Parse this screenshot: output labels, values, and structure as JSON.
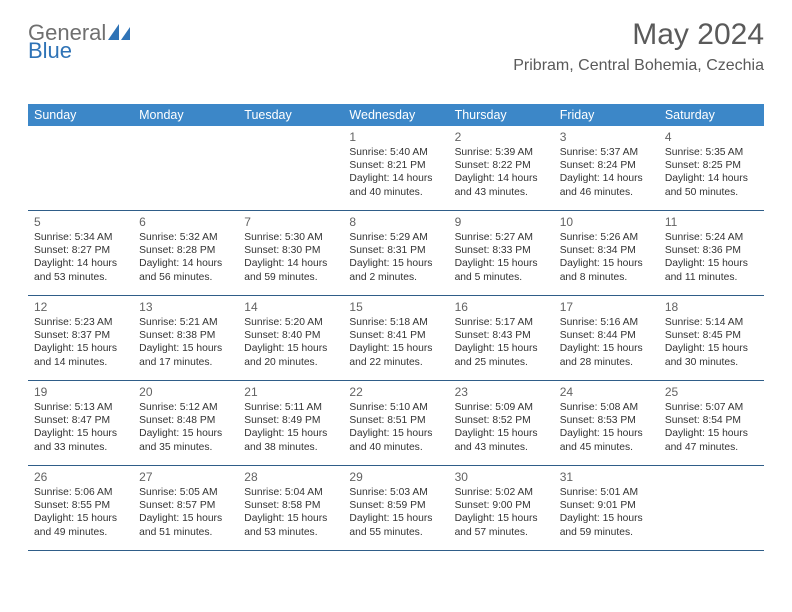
{
  "logo": {
    "line1": "General",
    "line2": "Blue"
  },
  "title": "May 2024",
  "subtitle": "Pribram, Central Bohemia, Czechia",
  "colors": {
    "header_bg": "#3c87c8",
    "header_text": "#ffffff",
    "rule": "#2f5d88",
    "title_text": "#5a5a5a",
    "logo_gray": "#6f6f6f",
    "logo_blue": "#2f73b6",
    "body_text": "#333333",
    "daynum_text": "#636363",
    "page_bg": "#ffffff"
  },
  "dow": [
    "Sunday",
    "Monday",
    "Tuesday",
    "Wednesday",
    "Thursday",
    "Friday",
    "Saturday"
  ],
  "weeks": [
    [
      {
        "n": "",
        "sr": "",
        "ss": "",
        "dl": ""
      },
      {
        "n": "",
        "sr": "",
        "ss": "",
        "dl": ""
      },
      {
        "n": "",
        "sr": "",
        "ss": "",
        "dl": ""
      },
      {
        "n": "1",
        "sr": "Sunrise: 5:40 AM",
        "ss": "Sunset: 8:21 PM",
        "dl": "Daylight: 14 hours and 40 minutes."
      },
      {
        "n": "2",
        "sr": "Sunrise: 5:39 AM",
        "ss": "Sunset: 8:22 PM",
        "dl": "Daylight: 14 hours and 43 minutes."
      },
      {
        "n": "3",
        "sr": "Sunrise: 5:37 AM",
        "ss": "Sunset: 8:24 PM",
        "dl": "Daylight: 14 hours and 46 minutes."
      },
      {
        "n": "4",
        "sr": "Sunrise: 5:35 AM",
        "ss": "Sunset: 8:25 PM",
        "dl": "Daylight: 14 hours and 50 minutes."
      }
    ],
    [
      {
        "n": "5",
        "sr": "Sunrise: 5:34 AM",
        "ss": "Sunset: 8:27 PM",
        "dl": "Daylight: 14 hours and 53 minutes."
      },
      {
        "n": "6",
        "sr": "Sunrise: 5:32 AM",
        "ss": "Sunset: 8:28 PM",
        "dl": "Daylight: 14 hours and 56 minutes."
      },
      {
        "n": "7",
        "sr": "Sunrise: 5:30 AM",
        "ss": "Sunset: 8:30 PM",
        "dl": "Daylight: 14 hours and 59 minutes."
      },
      {
        "n": "8",
        "sr": "Sunrise: 5:29 AM",
        "ss": "Sunset: 8:31 PM",
        "dl": "Daylight: 15 hours and 2 minutes."
      },
      {
        "n": "9",
        "sr": "Sunrise: 5:27 AM",
        "ss": "Sunset: 8:33 PM",
        "dl": "Daylight: 15 hours and 5 minutes."
      },
      {
        "n": "10",
        "sr": "Sunrise: 5:26 AM",
        "ss": "Sunset: 8:34 PM",
        "dl": "Daylight: 15 hours and 8 minutes."
      },
      {
        "n": "11",
        "sr": "Sunrise: 5:24 AM",
        "ss": "Sunset: 8:36 PM",
        "dl": "Daylight: 15 hours and 11 minutes."
      }
    ],
    [
      {
        "n": "12",
        "sr": "Sunrise: 5:23 AM",
        "ss": "Sunset: 8:37 PM",
        "dl": "Daylight: 15 hours and 14 minutes."
      },
      {
        "n": "13",
        "sr": "Sunrise: 5:21 AM",
        "ss": "Sunset: 8:38 PM",
        "dl": "Daylight: 15 hours and 17 minutes."
      },
      {
        "n": "14",
        "sr": "Sunrise: 5:20 AM",
        "ss": "Sunset: 8:40 PM",
        "dl": "Daylight: 15 hours and 20 minutes."
      },
      {
        "n": "15",
        "sr": "Sunrise: 5:18 AM",
        "ss": "Sunset: 8:41 PM",
        "dl": "Daylight: 15 hours and 22 minutes."
      },
      {
        "n": "16",
        "sr": "Sunrise: 5:17 AM",
        "ss": "Sunset: 8:43 PM",
        "dl": "Daylight: 15 hours and 25 minutes."
      },
      {
        "n": "17",
        "sr": "Sunrise: 5:16 AM",
        "ss": "Sunset: 8:44 PM",
        "dl": "Daylight: 15 hours and 28 minutes."
      },
      {
        "n": "18",
        "sr": "Sunrise: 5:14 AM",
        "ss": "Sunset: 8:45 PM",
        "dl": "Daylight: 15 hours and 30 minutes."
      }
    ],
    [
      {
        "n": "19",
        "sr": "Sunrise: 5:13 AM",
        "ss": "Sunset: 8:47 PM",
        "dl": "Daylight: 15 hours and 33 minutes."
      },
      {
        "n": "20",
        "sr": "Sunrise: 5:12 AM",
        "ss": "Sunset: 8:48 PM",
        "dl": "Daylight: 15 hours and 35 minutes."
      },
      {
        "n": "21",
        "sr": "Sunrise: 5:11 AM",
        "ss": "Sunset: 8:49 PM",
        "dl": "Daylight: 15 hours and 38 minutes."
      },
      {
        "n": "22",
        "sr": "Sunrise: 5:10 AM",
        "ss": "Sunset: 8:51 PM",
        "dl": "Daylight: 15 hours and 40 minutes."
      },
      {
        "n": "23",
        "sr": "Sunrise: 5:09 AM",
        "ss": "Sunset: 8:52 PM",
        "dl": "Daylight: 15 hours and 43 minutes."
      },
      {
        "n": "24",
        "sr": "Sunrise: 5:08 AM",
        "ss": "Sunset: 8:53 PM",
        "dl": "Daylight: 15 hours and 45 minutes."
      },
      {
        "n": "25",
        "sr": "Sunrise: 5:07 AM",
        "ss": "Sunset: 8:54 PM",
        "dl": "Daylight: 15 hours and 47 minutes."
      }
    ],
    [
      {
        "n": "26",
        "sr": "Sunrise: 5:06 AM",
        "ss": "Sunset: 8:55 PM",
        "dl": "Daylight: 15 hours and 49 minutes."
      },
      {
        "n": "27",
        "sr": "Sunrise: 5:05 AM",
        "ss": "Sunset: 8:57 PM",
        "dl": "Daylight: 15 hours and 51 minutes."
      },
      {
        "n": "28",
        "sr": "Sunrise: 5:04 AM",
        "ss": "Sunset: 8:58 PM",
        "dl": "Daylight: 15 hours and 53 minutes."
      },
      {
        "n": "29",
        "sr": "Sunrise: 5:03 AM",
        "ss": "Sunset: 8:59 PM",
        "dl": "Daylight: 15 hours and 55 minutes."
      },
      {
        "n": "30",
        "sr": "Sunrise: 5:02 AM",
        "ss": "Sunset: 9:00 PM",
        "dl": "Daylight: 15 hours and 57 minutes."
      },
      {
        "n": "31",
        "sr": "Sunrise: 5:01 AM",
        "ss": "Sunset: 9:01 PM",
        "dl": "Daylight: 15 hours and 59 minutes."
      },
      {
        "n": "",
        "sr": "",
        "ss": "",
        "dl": ""
      }
    ]
  ]
}
